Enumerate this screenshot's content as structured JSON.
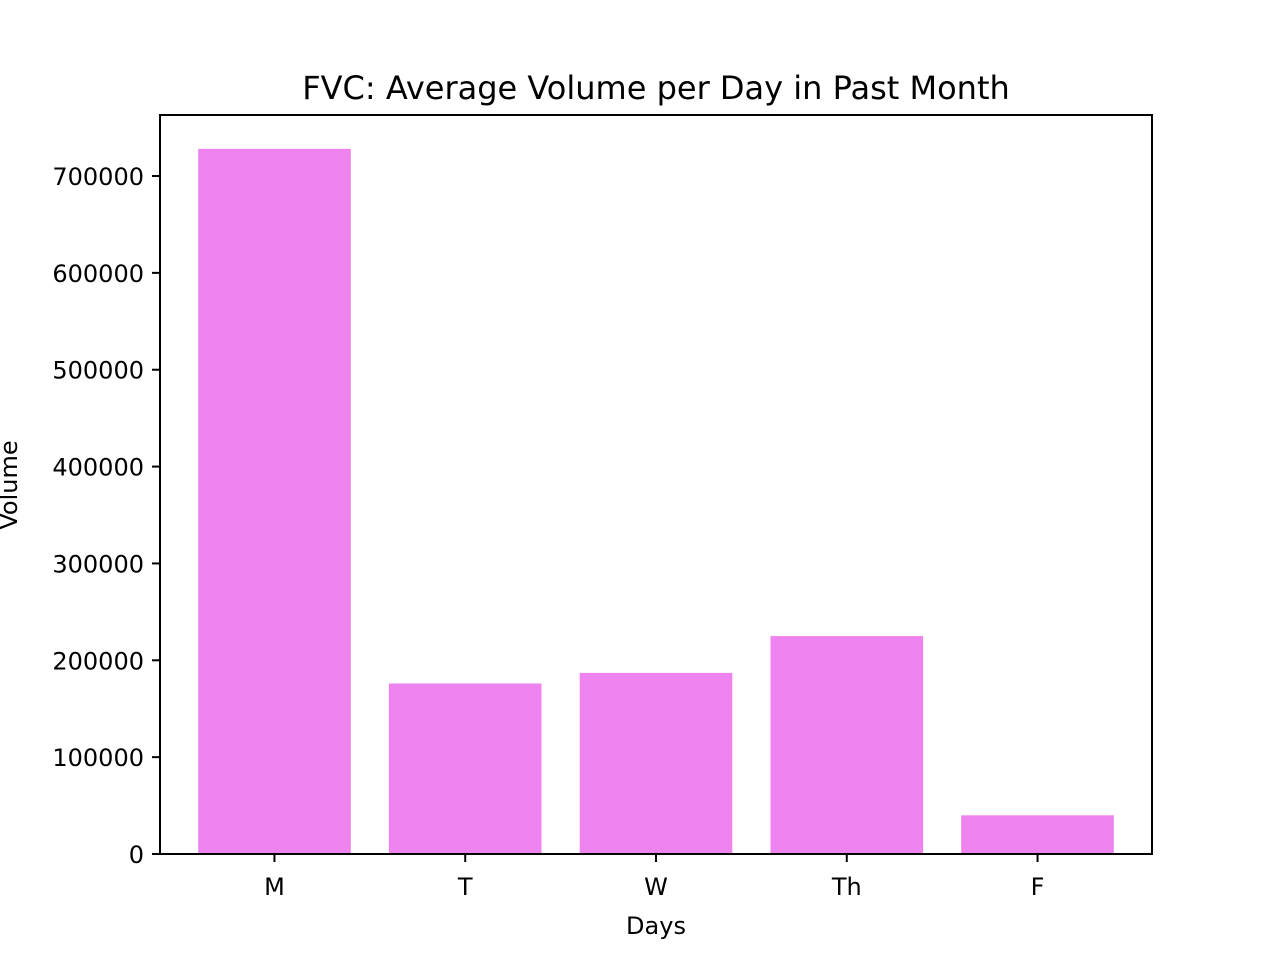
{
  "chart_data": {
    "type": "bar",
    "title": "FVC: Average Volume per Day in Past Month",
    "xlabel": "Days",
    "ylabel": "Volume",
    "categories": [
      "M",
      "T",
      "W",
      "Th",
      "F"
    ],
    "values": [
      728000,
      176000,
      187000,
      225000,
      40000
    ],
    "ylim": [
      0,
      763000
    ],
    "yticks": [
      0,
      100000,
      200000,
      300000,
      400000,
      500000,
      600000,
      700000
    ],
    "ytick_labels": [
      "0",
      "100000",
      "200000",
      "300000",
      "400000",
      "500000",
      "600000",
      "700000"
    ],
    "bar_color": "#EE82EE",
    "grid": false,
    "legend": "none"
  }
}
